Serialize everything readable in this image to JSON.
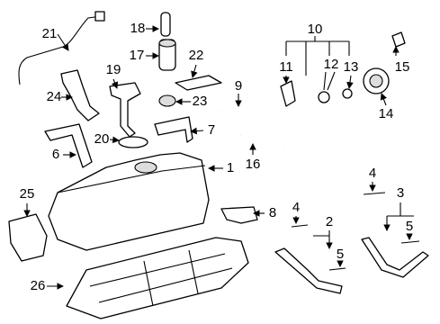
{
  "callouts": [
    {
      "label": "21"
    },
    {
      "label": "18"
    },
    {
      "label": "17"
    },
    {
      "label": "22"
    },
    {
      "label": "19"
    },
    {
      "label": "24"
    },
    {
      "label": "23"
    },
    {
      "label": "9"
    },
    {
      "label": "10"
    },
    {
      "label": "11"
    },
    {
      "label": "12"
    },
    {
      "label": "13"
    },
    {
      "label": "15"
    },
    {
      "label": "14"
    },
    {
      "label": "20"
    },
    {
      "label": "7"
    },
    {
      "label": "6"
    },
    {
      "label": "16"
    },
    {
      "label": "1"
    },
    {
      "label": "4"
    },
    {
      "label": "3"
    },
    {
      "label": "25"
    },
    {
      "label": "8"
    },
    {
      "label": "4"
    },
    {
      "label": "2"
    },
    {
      "label": "5"
    },
    {
      "label": "5"
    },
    {
      "label": "26"
    }
  ]
}
